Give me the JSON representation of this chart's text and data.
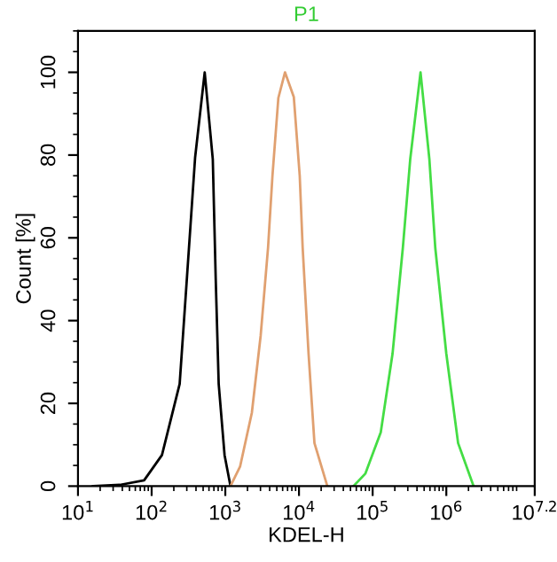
{
  "chart_data": {
    "type": "line",
    "title": "P1",
    "xlabel": "KDEL-H",
    "ylabel": "Count [%]",
    "log": "x",
    "xlim": [
      10,
      15848932
    ],
    "xticks": [
      {
        "value": 10,
        "label": "10$^{1}$"
      },
      {
        "value": 100,
        "label": "10$^{2}$"
      },
      {
        "value": 1000,
        "label": "10$^{3}$"
      },
      {
        "value": 10000,
        "label": "10$^{4}$"
      },
      {
        "value": 100000,
        "label": "10$^{5}$"
      },
      {
        "value": 1000000,
        "label": "10$^{6}$"
      },
      {
        "value": 15848932,
        "label": "10$^{7.2}$"
      }
    ],
    "ylim": [
      0,
      110
    ],
    "yticks": [
      0,
      20,
      40,
      60,
      80,
      100
    ],
    "grid": false,
    "marker": "none",
    "line_style": "solid",
    "series": [
      {
        "color": "#000000",
        "x": [
          16,
          37,
          79,
          138,
          240,
          302,
          389,
          525,
          676,
          741,
          813,
          977,
          1175
        ],
        "values": [
          0,
          0.3,
          1.4,
          7.5,
          24.7,
          50.6,
          79.4,
          100,
          79,
          50,
          24.7,
          7.5,
          0
        ]
      },
      {
        "color": "#e0a070",
        "x": [
          1175,
          1585,
          2291,
          3020,
          3802,
          4365,
          5248,
          6457,
          8511,
          10233,
          11220,
          13490,
          16218,
          23988
        ],
        "values": [
          0,
          4.7,
          17.7,
          36.4,
          57.6,
          75,
          93.8,
          100,
          94,
          75,
          57.6,
          32,
          10.4,
          0.3
        ]
      },
      {
        "color": "#44dd44",
        "x": [
          54954,
          79433,
          128825,
          186209,
          257040,
          323594,
          446684,
          588844,
          707946,
          1000000,
          1445440,
          2344229
        ],
        "values": [
          0,
          3,
          13,
          32,
          57.6,
          79,
          100,
          79,
          57.6,
          32,
          10.4,
          0
        ]
      }
    ]
  }
}
